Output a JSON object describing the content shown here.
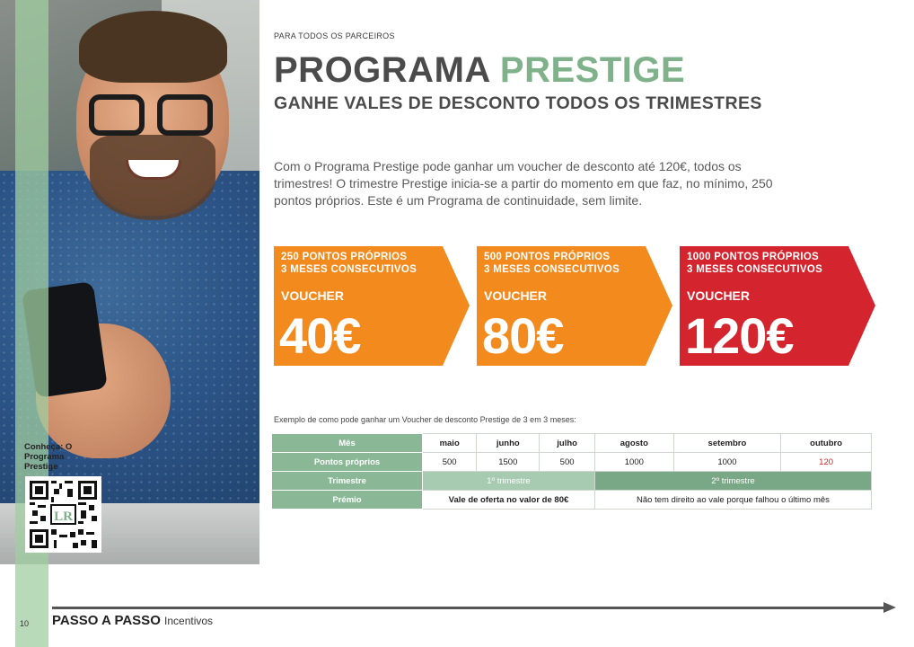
{
  "header": {
    "kicker": "PARA TODOS OS PARCEIROS",
    "title_main": "PROGRAMA",
    "title_accent": "PRESTIGE",
    "subtitle": "GANHE VALES DE DESCONTO TODOS OS TRIMESTRES"
  },
  "intro": "Com o Programa Prestige pode ganhar um voucher de desconto até 120€, todos os trimestres! O trimestre Prestige inicia-se a partir do momento em que faz, no mínimo, 250 pontos próprios. Este é um Programa de continuidade, sem limite.",
  "vouchers": [
    {
      "line1": "250 PONTOS PRÓPRIOS",
      "line2": "3 MESES CONSECUTIVOS",
      "label": "VOUCHER",
      "amount": "40€",
      "color": "#f28a1e"
    },
    {
      "line1": "500 PONTOS PRÓPRIOS",
      "line2": "3 MESES CONSECUTIVOS",
      "label": "VOUCHER",
      "amount": "80€",
      "color": "#f28a1e"
    },
    {
      "line1": "1000 PONTOS PRÓPRIOS",
      "line2": "3 MESES CONSECUTIVOS",
      "label": "VOUCHER",
      "amount": "120€",
      "color": "#d4242e"
    }
  ],
  "example_caption": "Exemplo de como pode ganhar um Voucher de desconto Prestige de 3 em 3 meses:",
  "schedule": {
    "row_labels": [
      "Mês",
      "Pontos próprios",
      "Trimestre",
      "Prémio"
    ],
    "months": [
      "maio",
      "junho",
      "julho",
      "agosto",
      "setembro",
      "outubro"
    ],
    "points": [
      "500",
      "1500",
      "500",
      "1000",
      "1000",
      "120"
    ],
    "quarters": [
      "1º trimestre",
      "2º trimestre"
    ],
    "prizes": [
      "Vale de oferta no valor de 80€",
      "Não tem direito ao vale porque falhou o último mês"
    ]
  },
  "qr": {
    "label": "Conheça: O Programa Prestige"
  },
  "footer": {
    "page": "10",
    "title": "PASSO A PASSO",
    "subtitle": "Incentivos"
  },
  "colors": {
    "accent_green": "#7fb18a",
    "orange": "#f28a1e",
    "red": "#d4242e",
    "table_green": "#8ab896"
  }
}
